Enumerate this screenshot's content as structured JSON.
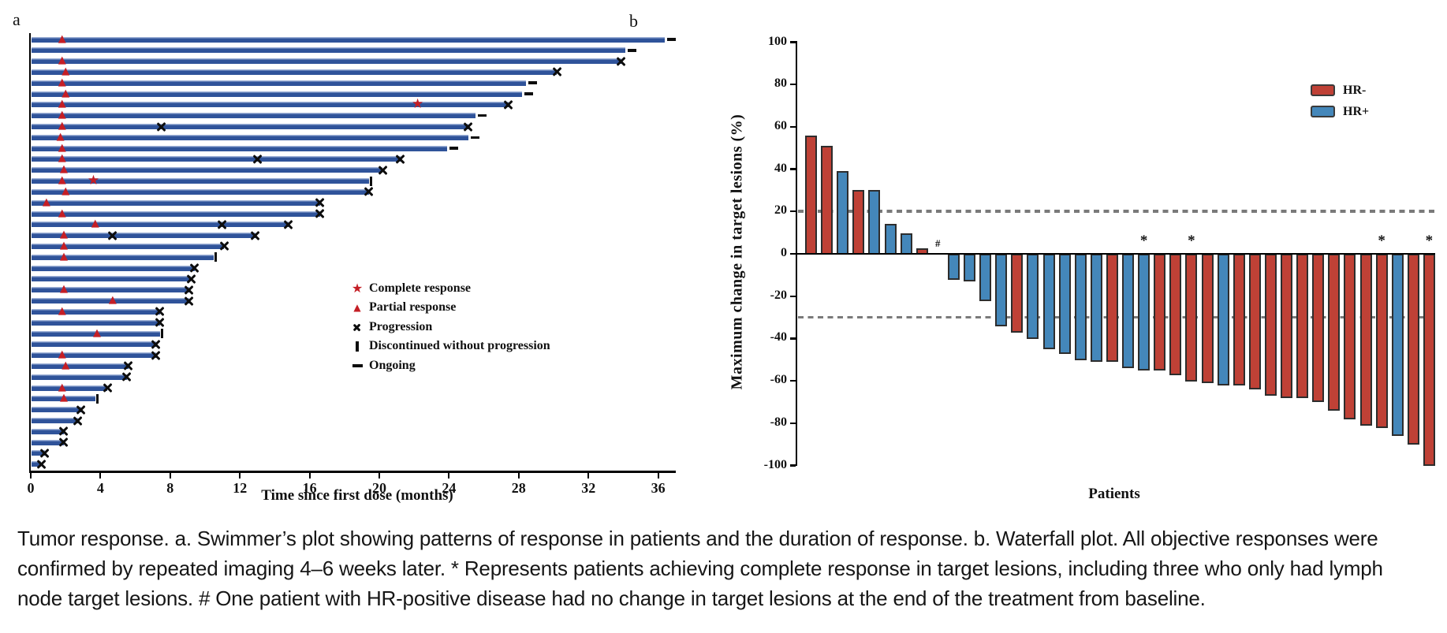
{
  "figure": {
    "panel_a_label": "a",
    "panel_b_label": "b"
  },
  "colors": {
    "swimmer_bar": "#2f539a",
    "swimmer_bar_highlight": "#9db0d6",
    "marker_red": "#c41e25",
    "marker_black": "#0d0d0d",
    "hr_negative": "#bf4136",
    "hr_positive": "#4487ba",
    "dashed_line": "#7a7a7a",
    "axis_black": "#000000"
  },
  "chart_data": [
    {
      "type": "bar",
      "name": "swimmer-plot",
      "orientation": "horizontal",
      "xlabel": "Time since first dose (months)",
      "xticks": [
        0,
        4,
        8,
        12,
        16,
        20,
        24,
        28,
        32,
        36
      ],
      "xlim": [
        0,
        37
      ],
      "grid": false,
      "legend_position": "inside-right",
      "legend": [
        {
          "symbol": "star",
          "label": "Complete response"
        },
        {
          "symbol": "triangle",
          "label": "Partial response"
        },
        {
          "symbol": "x",
          "label": "Progression"
        },
        {
          "symbol": "vbar",
          "label": "Discontinued without progression"
        },
        {
          "symbol": "dash",
          "label": "Ongoing"
        }
      ],
      "bars": [
        {
          "d": 36.4,
          "end": "ongoing",
          "pr": 1.8
        },
        {
          "d": 34.1,
          "end": "ongoing"
        },
        {
          "d": 33.9,
          "end": "progression",
          "pr": 1.8
        },
        {
          "d": 30.2,
          "end": "progression",
          "pr": 2.0
        },
        {
          "d": 28.4,
          "end": "ongoing",
          "pr": 1.8
        },
        {
          "d": 28.2,
          "end": "ongoing",
          "pr": 2.0
        },
        {
          "d": 27.4,
          "end": "progression",
          "pr": 1.8,
          "cr": 22.2
        },
        {
          "d": 25.5,
          "end": "ongoing",
          "pr": 1.8
        },
        {
          "d": 25.1,
          "end": "progression",
          "pr": 1.8,
          "mid": [
            7.5
          ]
        },
        {
          "d": 25.1,
          "end": "ongoing",
          "pr": 1.7
        },
        {
          "d": 23.9,
          "end": "ongoing",
          "pr": 1.8
        },
        {
          "d": 21.2,
          "end": "progression",
          "pr": 1.8,
          "mid": [
            13.0
          ]
        },
        {
          "d": 20.2,
          "end": "progression",
          "pr": 1.9
        },
        {
          "d": 19.4,
          "end": "discontinued",
          "pr": 1.8,
          "cr": 3.6
        },
        {
          "d": 19.4,
          "end": "progression",
          "pr": 2.0
        },
        {
          "d": 16.6,
          "end": "progression",
          "pr": 0.9
        },
        {
          "d": 16.6,
          "end": "progression",
          "pr": 1.8
        },
        {
          "d": 14.8,
          "end": "progression",
          "pr": 3.7,
          "mid": [
            11.0
          ]
        },
        {
          "d": 12.9,
          "end": "progression",
          "pr": 1.9,
          "mid": [
            4.7
          ]
        },
        {
          "d": 11.1,
          "end": "progression",
          "pr": 1.9
        },
        {
          "d": 10.5,
          "end": "discontinued",
          "pr": 1.9
        },
        {
          "d": 9.4,
          "end": "progression"
        },
        {
          "d": 9.2,
          "end": "progression"
        },
        {
          "d": 9.1,
          "end": "progression",
          "pr": 1.9
        },
        {
          "d": 9.1,
          "end": "progression",
          "pr": 4.7
        },
        {
          "d": 7.4,
          "end": "progression",
          "pr": 1.8
        },
        {
          "d": 7.4,
          "end": "progression"
        },
        {
          "d": 7.4,
          "end": "discontinued",
          "pr": 3.8
        },
        {
          "d": 7.2,
          "end": "progression"
        },
        {
          "d": 7.2,
          "end": "progression",
          "pr": 1.8
        },
        {
          "d": 5.6,
          "end": "progression",
          "pr": 2.0
        },
        {
          "d": 5.5,
          "end": "progression"
        },
        {
          "d": 4.4,
          "end": "progression",
          "pr": 1.8
        },
        {
          "d": 3.7,
          "end": "discontinued",
          "pr": 1.9
        },
        {
          "d": 2.9,
          "end": "progression"
        },
        {
          "d": 2.7,
          "end": "progression"
        },
        {
          "d": 1.9,
          "end": "progression"
        },
        {
          "d": 1.9,
          "end": "progression"
        },
        {
          "d": 0.8,
          "end": "progression"
        },
        {
          "d": 0.6,
          "end": "progression"
        }
      ]
    },
    {
      "type": "bar",
      "name": "waterfall-plot",
      "xlabel": "Patients",
      "ylabel": "Maximum change in target lesions (%)",
      "yticks": [
        100,
        80,
        60,
        40,
        20,
        0,
        -20,
        -40,
        -60,
        -80,
        -100
      ],
      "ylim": [
        -100,
        100
      ],
      "ref_lines": [
        20,
        -30
      ],
      "legend_position": "top-right",
      "legend": [
        {
          "label": "HR-",
          "group": "HR-"
        },
        {
          "label": "HR+",
          "group": "HR+"
        }
      ],
      "values": [
        56,
        51,
        39,
        30,
        30,
        14,
        9.5,
        2.5,
        0,
        -12,
        -13,
        -22,
        -34,
        -37,
        -40,
        -45,
        -47,
        -50,
        -51,
        -51,
        -54,
        -55,
        -55,
        -57,
        -60,
        -61,
        -62,
        -62,
        -64,
        -67,
        -68,
        -68,
        -70,
        -74,
        -78,
        -81,
        -82,
        -86,
        -90,
        -100
      ],
      "groups": [
        "HR-",
        "HR-",
        "HR+",
        "HR-",
        "HR+",
        "HR+",
        "HR+",
        "HR-",
        "HR+",
        "HR+",
        "HR+",
        "HR+",
        "HR+",
        "HR-",
        "HR+",
        "HR+",
        "HR+",
        "HR+",
        "HR+",
        "HR-",
        "HR+",
        "HR+",
        "HR-",
        "HR-",
        "HR-",
        "HR-",
        "HR+",
        "HR-",
        "HR-",
        "HR-",
        "HR-",
        "HR-",
        "HR-",
        "HR-",
        "HR-",
        "HR-",
        "HR-",
        "HR+",
        "HR-",
        "HR-"
      ],
      "annotations": [
        {
          "index": 9,
          "text": "#"
        },
        {
          "index": 22,
          "text": "*"
        },
        {
          "index": 25,
          "text": "*"
        },
        {
          "index": 37,
          "text": "*"
        },
        {
          "index": 40,
          "text": "*"
        }
      ]
    }
  ],
  "caption_lines": [
    "Tumor response. a. Swimmer’s plot showing patterns of response in patients and the duration of response. b. Waterfall plot. All objective responses were",
    "confirmed by repeated imaging 4–6 weeks later. * Represents patients achieving complete response in target lesions, including three who only had lymph",
    "node target lesions. # One patient with HR-positive disease had no change in target lesions at the end of the treatment from baseline."
  ]
}
